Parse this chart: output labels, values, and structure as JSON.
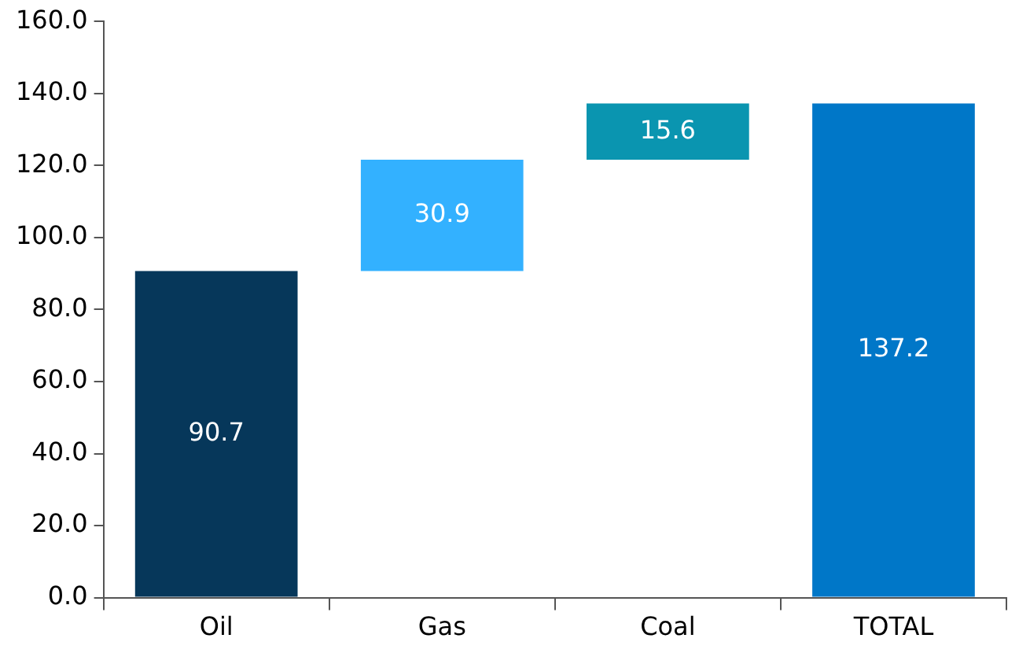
{
  "chart_data": {
    "type": "bar",
    "categories": [
      "Oil",
      "Gas",
      "Coal",
      "TOTAL"
    ],
    "values": [
      90.7,
      30.9,
      15.6,
      137.2
    ],
    "base": [
      0,
      90.7,
      121.6,
      0
    ],
    "colors": [
      "#06375a",
      "#33b1ff",
      "#0a95b0",
      "#0077c8"
    ],
    "ylim": [
      0,
      160
    ],
    "yticks": [
      {
        "value": 0,
        "label": "0.0"
      },
      {
        "value": 20,
        "label": "20.0"
      },
      {
        "value": 40,
        "label": "40.0"
      },
      {
        "value": 60,
        "label": "60.0"
      },
      {
        "value": 80,
        "label": "80.0"
      },
      {
        "value": 100,
        "label": "100.0"
      },
      {
        "value": 120,
        "label": "120.0"
      },
      {
        "value": 140,
        "label": "140.0"
      },
      {
        "value": 160,
        "label": "160.0"
      }
    ],
    "data_labels": true,
    "grid": false,
    "legend": false
  }
}
